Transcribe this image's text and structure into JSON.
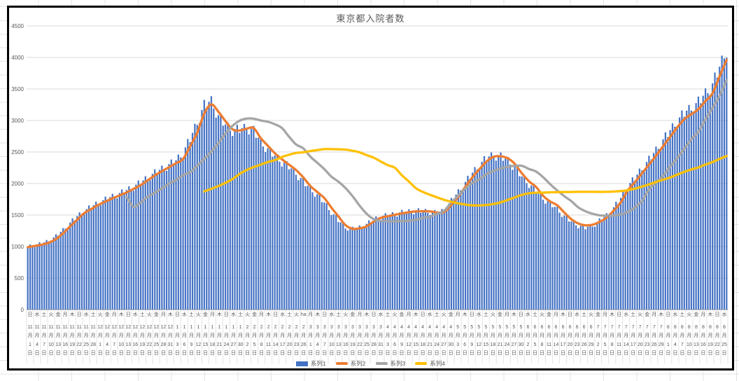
{
  "chart_data": {
    "type": "combo",
    "title": "東京都入院者数",
    "legend_position": "bottom",
    "grid": true,
    "y_axis": {
      "min": 0,
      "max": 4500,
      "step": 500,
      "ticks": [
        0,
        500,
        1000,
        1500,
        2000,
        2500,
        3000,
        3500,
        4000,
        4500
      ]
    },
    "x_axis": {
      "tick_interval_days": 3,
      "month_suffix": "月",
      "day_suffix": "日",
      "tick_labels": [
        [
          "日",
          "11",
          "1"
        ],
        [
          "水",
          "11",
          "4"
        ],
        [
          "土",
          "11",
          "7"
        ],
        [
          "火",
          "11",
          "10"
        ],
        [
          "金",
          "11",
          "13"
        ],
        [
          "月",
          "11",
          "16"
        ],
        [
          "木",
          "11",
          "19"
        ],
        [
          "日",
          "11",
          "22"
        ],
        [
          "水",
          "11",
          "25"
        ],
        [
          "土",
          "11",
          "28"
        ],
        [
          "火",
          "12",
          "1"
        ],
        [
          "金",
          "12",
          "4"
        ],
        [
          "月",
          "12",
          "7"
        ],
        [
          "木",
          "12",
          "10"
        ],
        [
          "日",
          "12",
          "13"
        ],
        [
          "水",
          "12",
          "16"
        ],
        [
          "土",
          "12",
          "19"
        ],
        [
          "火",
          "12",
          "22"
        ],
        [
          "金",
          "12",
          "25"
        ],
        [
          "月",
          "12",
          "28"
        ],
        [
          "木",
          "12",
          "31"
        ],
        [
          "日",
          "1",
          "3"
        ],
        [
          "水",
          "1",
          "6"
        ],
        [
          "土",
          "1",
          "9"
        ],
        [
          "火",
          "1",
          "12"
        ],
        [
          "金",
          "1",
          "15"
        ],
        [
          "月",
          "1",
          "18"
        ],
        [
          "木",
          "1",
          "21"
        ],
        [
          "日",
          "1",
          "24"
        ],
        [
          "水",
          "1",
          "27"
        ],
        [
          "土",
          "1",
          "30"
        ],
        [
          "火",
          "2",
          "2"
        ],
        [
          "金",
          "2",
          "5"
        ],
        [
          "月",
          "2",
          "8"
        ],
        [
          "木",
          "2",
          "11"
        ],
        [
          "日",
          "2",
          "14"
        ],
        [
          "水",
          "2",
          "17"
        ],
        [
          "土",
          "2",
          "20"
        ],
        [
          "火",
          "2",
          "23"
        ],
        [
          "ha",
          "2",
          "26"
        ],
        [
          "月",
          "3",
          "1"
        ],
        [
          "木",
          "3",
          "4"
        ],
        [
          "日",
          "3",
          "7"
        ],
        [
          "水",
          "3",
          "10"
        ],
        [
          "土",
          "3",
          "13"
        ],
        [
          "火",
          "3",
          "16"
        ],
        [
          "金",
          "3",
          "19"
        ],
        [
          "月",
          "3",
          "22"
        ],
        [
          "木",
          "3",
          "25"
        ],
        [
          "日",
          "3",
          "28"
        ],
        [
          "水",
          "3",
          "31"
        ],
        [
          "土",
          "4",
          "3"
        ],
        [
          "火",
          "4",
          "6"
        ],
        [
          "金",
          "4",
          "9"
        ],
        [
          "月",
          "4",
          "12"
        ],
        [
          "木",
          "4",
          "15"
        ],
        [
          "日",
          "4",
          "18"
        ],
        [
          "水",
          "4",
          "21"
        ],
        [
          "土",
          "4",
          "24"
        ],
        [
          "火",
          "4",
          "27"
        ],
        [
          "金",
          "4",
          "30"
        ],
        [
          "月",
          "5",
          "3"
        ],
        [
          "木",
          "5",
          "6"
        ],
        [
          "日",
          "5",
          "9"
        ],
        [
          "水",
          "5",
          "12"
        ],
        [
          "土",
          "5",
          "15"
        ],
        [
          "火",
          "5",
          "18"
        ],
        [
          "金",
          "5",
          "21"
        ],
        [
          "月",
          "5",
          "24"
        ],
        [
          "木",
          "5",
          "27"
        ],
        [
          "日",
          "5",
          "30"
        ],
        [
          "水",
          "6",
          "2"
        ],
        [
          "土",
          "6",
          "5"
        ],
        [
          "火",
          "6",
          "8"
        ],
        [
          "金",
          "6",
          "11"
        ],
        [
          "月",
          "6",
          "14"
        ],
        [
          "木",
          "6",
          "17"
        ],
        [
          "日",
          "6",
          "20"
        ],
        [
          "水",
          "6",
          "23"
        ],
        [
          "土",
          "6",
          "26"
        ],
        [
          "火",
          "6",
          "29"
        ],
        [
          "金",
          "7",
          "2"
        ],
        [
          "月",
          "7",
          "5"
        ],
        [
          "木",
          "7",
          "8"
        ],
        [
          "日",
          "7",
          "11"
        ],
        [
          "水",
          "7",
          "14"
        ],
        [
          "土",
          "7",
          "17"
        ],
        [
          "火",
          "7",
          "20"
        ],
        [
          "金",
          "7",
          "23"
        ],
        [
          "月",
          "7",
          "26"
        ],
        [
          "木",
          "7",
          "29"
        ],
        [
          "日",
          "8",
          "1"
        ],
        [
          "水",
          "8",
          "4"
        ],
        [
          "土",
          "8",
          "7"
        ],
        [
          "火",
          "8",
          "10"
        ],
        [
          "金",
          "8",
          "13"
        ],
        [
          "月",
          "8",
          "16"
        ],
        [
          "木",
          "8",
          "19"
        ],
        [
          "日",
          "8",
          "22"
        ],
        [
          "水",
          "8",
          "25"
        ]
      ]
    },
    "series": [
      {
        "name": "系列1",
        "type": "bar",
        "color": "#4472C4",
        "values": [
          1000,
          1020,
          1045,
          1090,
          1160,
          1260,
          1370,
          1475,
          1560,
          1625,
          1690,
          1740,
          1790,
          1835,
          1885,
          1945,
          2010,
          2090,
          2160,
          2225,
          2290,
          2355,
          2480,
          2700,
          2960,
          3230,
          3300,
          3060,
          2920,
          2840,
          2850,
          2880,
          2830,
          2650,
          2540,
          2430,
          2340,
          2260,
          2160,
          2030,
          1910,
          1815,
          1690,
          1545,
          1410,
          1300,
          1275,
          1300,
          1350,
          1425,
          1470,
          1490,
          1515,
          1535,
          1552,
          1560,
          1558,
          1548,
          1525,
          1570,
          1720,
          1860,
          2010,
          2160,
          2290,
          2400,
          2445,
          2420,
          2360,
          2250,
          2100,
          1990,
          1880,
          1760,
          1680,
          1590,
          1480,
          1390,
          1330,
          1295,
          1330,
          1405,
          1490,
          1610,
          1760,
          1950,
          2080,
          2230,
          2370,
          2520,
          2680,
          2830,
          2980,
          3110,
          3190,
          3280,
          3420,
          3560,
          3830,
          4120
        ]
      },
      {
        "name": "系列2",
        "type": "line",
        "color": "#ED7D31",
        "values": [
          990,
          1010,
          1030,
          1062,
          1120,
          1210,
          1320,
          1425,
          1530,
          1595,
          1660,
          1713,
          1765,
          1810,
          1858,
          1915,
          1975,
          2050,
          2128,
          2195,
          2258,
          2322,
          2390,
          2590,
          2805,
          3110,
          3255,
          3140,
          2990,
          2860,
          2840,
          2870,
          2880,
          2720,
          2600,
          2480,
          2385,
          2300,
          2215,
          2100,
          1965,
          1865,
          1770,
          1620,
          1480,
          1340,
          1282,
          1290,
          1320,
          1395,
          1455,
          1480,
          1505,
          1525,
          1545,
          1558,
          1560,
          1558,
          1540,
          1550,
          1660,
          1790,
          1950,
          2100,
          2230,
          2350,
          2425,
          2432,
          2400,
          2310,
          2160,
          2035,
          1945,
          1805,
          1715,
          1655,
          1540,
          1435,
          1365,
          1337,
          1345,
          1390,
          1460,
          1570,
          1700,
          1890,
          2020,
          2160,
          2300,
          2440,
          2590,
          2740,
          2890,
          3020,
          3100,
          3180,
          3310,
          3430,
          3700,
          3960
        ]
      },
      {
        "name": "系列3",
        "type": "line",
        "color": "#A5A5A5",
        "values": [
          null,
          null,
          null,
          null,
          null,
          null,
          null,
          null,
          null,
          null,
          null,
          null,
          null,
          null,
          1790,
          1630,
          1700,
          1790,
          1855,
          1920,
          2000,
          2055,
          2130,
          2180,
          2280,
          2390,
          2505,
          2640,
          2790,
          2915,
          2995,
          3030,
          3028,
          3000,
          2980,
          2940,
          2880,
          2745,
          2620,
          2560,
          2430,
          2330,
          2230,
          2110,
          2030,
          1930,
          1800,
          1650,
          1520,
          1435,
          1408,
          1400,
          1400,
          1402,
          1408,
          1425,
          1455,
          1475,
          1520,
          1570,
          1700,
          1810,
          1920,
          2010,
          2070,
          2150,
          2200,
          2240,
          2265,
          2280,
          2280,
          2230,
          2190,
          2100,
          1990,
          1890,
          1800,
          1720,
          1620,
          1560,
          1520,
          1495,
          1490,
          1492,
          1510,
          1550,
          1620,
          1720,
          1905,
          2010,
          2120,
          2270,
          2400,
          2550,
          2700,
          2820,
          3020,
          3200,
          3390,
          3640
        ]
      },
      {
        "name": "系列4",
        "type": "line",
        "color": "#FFC000",
        "values": [
          null,
          null,
          null,
          null,
          null,
          null,
          null,
          null,
          null,
          null,
          null,
          null,
          null,
          null,
          null,
          null,
          null,
          null,
          null,
          null,
          null,
          null,
          null,
          null,
          null,
          1875,
          1915,
          1960,
          2010,
          2070,
          2150,
          2215,
          2260,
          2300,
          2340,
          2370,
          2420,
          2455,
          2485,
          2495,
          2515,
          2530,
          2545,
          2545,
          2542,
          2538,
          2520,
          2495,
          2450,
          2410,
          2350,
          2290,
          2250,
          2130,
          2030,
          1925,
          1865,
          1820,
          1780,
          1740,
          1710,
          1685,
          1665,
          1653,
          1652,
          1660,
          1675,
          1700,
          1740,
          1780,
          1820,
          1845,
          1855,
          1856,
          1860,
          1862,
          1865,
          1866,
          1868,
          1868,
          1868,
          1867,
          1868,
          1872,
          1880,
          1895,
          1918,
          1950,
          1985,
          2025,
          2060,
          2095,
          2140,
          2185,
          2222,
          2255,
          2300,
          2340,
          2390,
          2435
        ]
      }
    ],
    "bars_per_tick_days": 3,
    "bar_weekly_jitter_pct": [
      0.6,
      2.6,
      -1.0,
      -3.0,
      0.8,
      3.0,
      -1.6
    ],
    "colors": {
      "gridline": "#D9D9D9",
      "axis_line": "#BFBFBF",
      "tick_separator": "#E3E3E3",
      "text": "#595959"
    }
  }
}
